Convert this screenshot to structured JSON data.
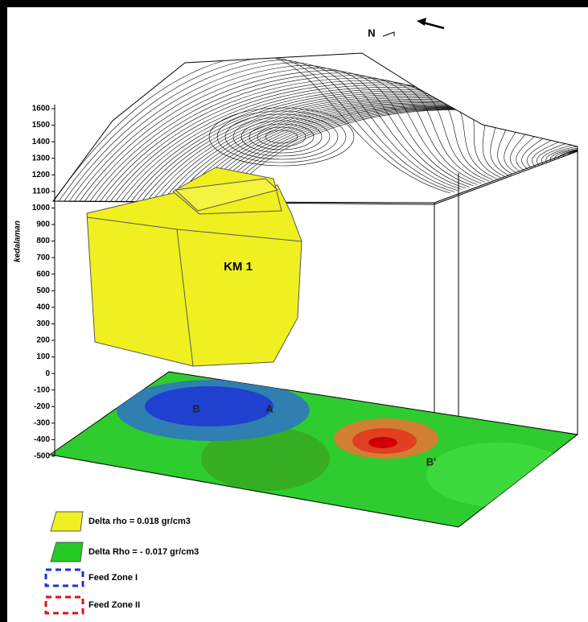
{
  "chart_data": {
    "type": "block-model-3d",
    "ylabel": "kedalaman",
    "ylim": [
      -500,
      1600
    ],
    "yticks": [
      -500,
      -400,
      -300,
      -200,
      -100,
      0,
      100,
      200,
      300,
      400,
      500,
      600,
      700,
      800,
      900,
      1000,
      1100,
      1200,
      1300,
      1400,
      1500,
      1600
    ],
    "annotations": [
      "N",
      "KM 1",
      "B",
      "A",
      "B'"
    ],
    "legend": [
      {
        "name": "Delta rho = 0.018 gr/cm3",
        "color": "#f0f020",
        "style": "solid"
      },
      {
        "name": "Delta Rho = - 0.017 gr/cm3",
        "color": "#22cc22",
        "style": "solid"
      },
      {
        "name": "Feed Zone I",
        "color": "#1e2fd8",
        "style": "dashed"
      },
      {
        "name": "Feed Zone II",
        "color": "#e01010",
        "style": "dashed"
      }
    ]
  }
}
